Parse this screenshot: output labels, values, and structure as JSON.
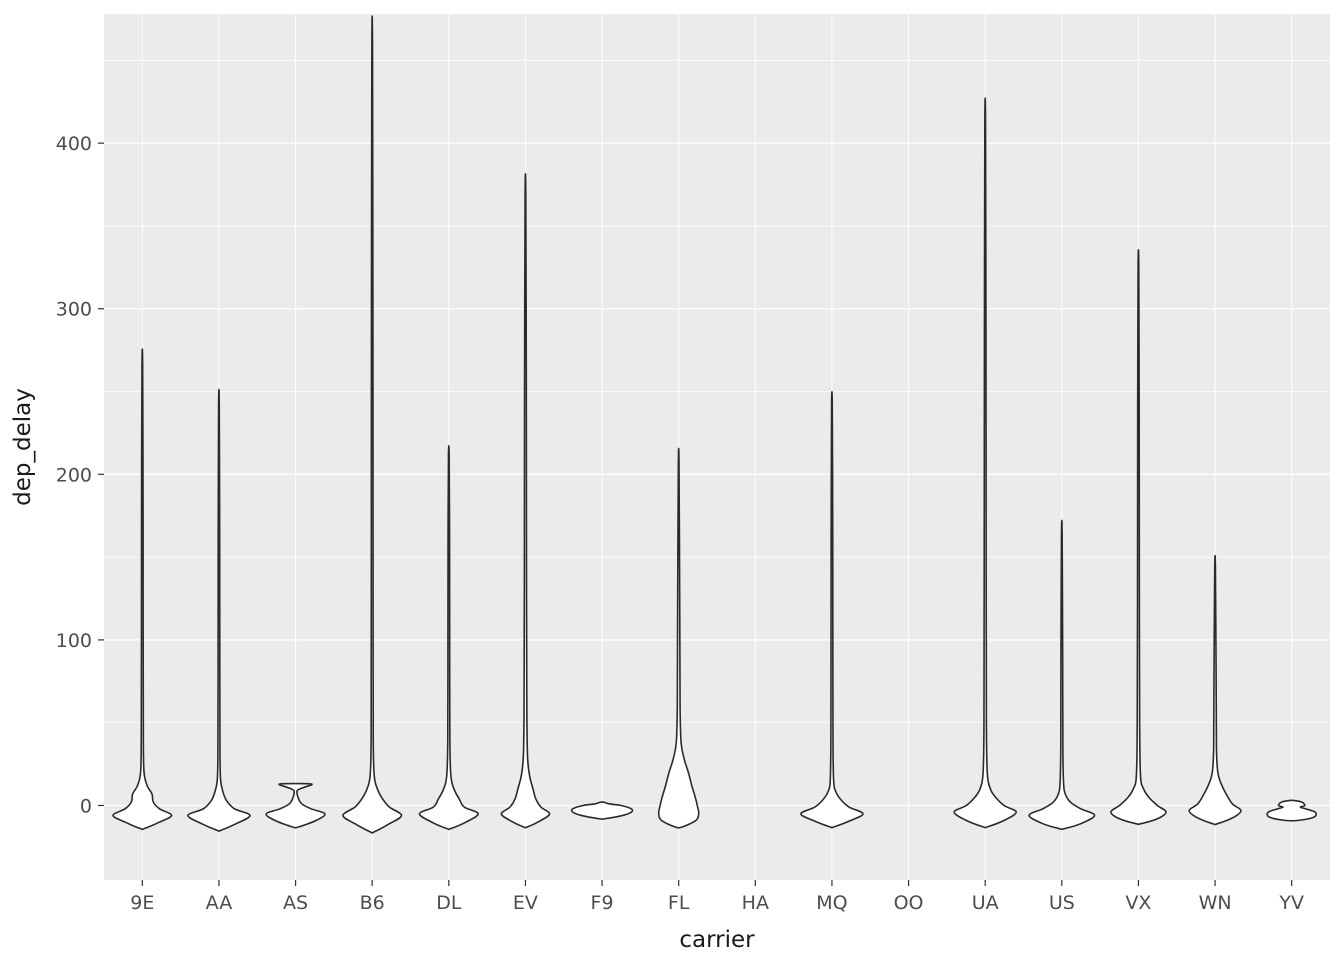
{
  "chart_data": {
    "type": "violin",
    "title": "",
    "xlabel": "carrier",
    "ylabel": "dep_delay",
    "categories": [
      "9E",
      "AA",
      "AS",
      "B6",
      "DL",
      "EV",
      "F9",
      "FL",
      "HA",
      "MQ",
      "OO",
      "UA",
      "US",
      "VX",
      "WN",
      "YV"
    ],
    "y_ticks": [
      0,
      100,
      200,
      300,
      400
    ],
    "y_minor_ticks": [
      50,
      150,
      250,
      350,
      450
    ],
    "ylim": [
      -45,
      478
    ],
    "legend": "none",
    "grid": "on",
    "panel_background": "#EBEBEB",
    "gridline_color": "#FFFFFF",
    "violin_fill": "#FFFFFF",
    "violin_stroke": "#2A2A2A",
    "tick_color": "#333333",
    "axis_text_color": "#4D4D4D",
    "series": [
      {
        "name": "9E",
        "min": -14,
        "max": 265,
        "profile": [
          [
            -14,
            0.05
          ],
          [
            -10,
            0.5
          ],
          [
            -6,
            0.85
          ],
          [
            -2,
            0.5
          ],
          [
            2,
            0.32
          ],
          [
            7,
            0.28
          ],
          [
            12,
            0.14
          ],
          [
            20,
            0.05
          ],
          [
            40,
            0.03
          ],
          [
            100,
            0.025
          ],
          [
            180,
            0.022
          ],
          [
            265,
            0.01
          ]
        ]
      },
      {
        "name": "AA",
        "min": -15,
        "max": 240,
        "profile": [
          [
            -15,
            0.05
          ],
          [
            -11,
            0.5
          ],
          [
            -6,
            0.9
          ],
          [
            -2,
            0.45
          ],
          [
            3,
            0.22
          ],
          [
            8,
            0.12
          ],
          [
            15,
            0.05
          ],
          [
            30,
            0.03
          ],
          [
            80,
            0.025
          ],
          [
            150,
            0.022
          ],
          [
            240,
            0.01
          ]
        ]
      },
      {
        "name": "AS",
        "min": -13,
        "max": 13,
        "profile": [
          [
            -13,
            0.08
          ],
          [
            -9,
            0.6
          ],
          [
            -5,
            0.85
          ],
          [
            -2,
            0.45
          ],
          [
            1,
            0.18
          ],
          [
            5,
            0.07
          ],
          [
            9,
            0.05
          ],
          [
            11,
            0.25
          ],
          [
            13,
            0.45
          ]
        ]
      },
      {
        "name": "B6",
        "min": -16,
        "max": 455,
        "profile": [
          [
            -16,
            0.05
          ],
          [
            -11,
            0.5
          ],
          [
            -6,
            0.85
          ],
          [
            -1,
            0.5
          ],
          [
            4,
            0.3
          ],
          [
            10,
            0.15
          ],
          [
            18,
            0.06
          ],
          [
            40,
            0.03
          ],
          [
            120,
            0.026
          ],
          [
            280,
            0.022
          ],
          [
            455,
            0.01
          ]
        ]
      },
      {
        "name": "DL",
        "min": -14,
        "max": 211,
        "profile": [
          [
            -14,
            0.05
          ],
          [
            -10,
            0.5
          ],
          [
            -5,
            0.85
          ],
          [
            -1,
            0.45
          ],
          [
            4,
            0.3
          ],
          [
            10,
            0.15
          ],
          [
            18,
            0.06
          ],
          [
            40,
            0.03
          ],
          [
            100,
            0.025
          ],
          [
            160,
            0.022
          ],
          [
            211,
            0.01
          ]
        ]
      },
      {
        "name": "EV",
        "min": -13,
        "max": 368,
        "profile": [
          [
            -13,
            0.05
          ],
          [
            -9,
            0.45
          ],
          [
            -5,
            0.7
          ],
          [
            -1,
            0.45
          ],
          [
            4,
            0.3
          ],
          [
            10,
            0.22
          ],
          [
            18,
            0.12
          ],
          [
            30,
            0.06
          ],
          [
            60,
            0.04
          ],
          [
            150,
            0.03
          ],
          [
            260,
            0.025
          ],
          [
            368,
            0.01
          ]
        ]
      },
      {
        "name": "F9",
        "min": -8,
        "max": 2,
        "profile": [
          [
            -8,
            0.08
          ],
          [
            -6,
            0.6
          ],
          [
            -4,
            0.85
          ],
          [
            -2,
            0.85
          ],
          [
            0,
            0.55
          ],
          [
            1,
            0.2
          ],
          [
            2,
            0.05
          ]
        ]
      },
      {
        "name": "FL",
        "min": -13,
        "max": 205,
        "profile": [
          [
            -13,
            0.1
          ],
          [
            -9,
            0.5
          ],
          [
            -5,
            0.58
          ],
          [
            -1,
            0.55
          ],
          [
            5,
            0.48
          ],
          [
            12,
            0.38
          ],
          [
            20,
            0.28
          ],
          [
            28,
            0.16
          ],
          [
            38,
            0.07
          ],
          [
            60,
            0.04
          ],
          [
            120,
            0.03
          ],
          [
            205,
            0.01
          ]
        ]
      },
      {
        "name": "HA",
        "min": null,
        "max": null,
        "profile": []
      },
      {
        "name": "MQ",
        "min": -13,
        "max": 241,
        "profile": [
          [
            -13,
            0.05
          ],
          [
            -9,
            0.55
          ],
          [
            -5,
            0.9
          ],
          [
            -1,
            0.5
          ],
          [
            3,
            0.28
          ],
          [
            8,
            0.12
          ],
          [
            15,
            0.05
          ],
          [
            40,
            0.03
          ],
          [
            100,
            0.026
          ],
          [
            170,
            0.022
          ],
          [
            241,
            0.01
          ]
        ]
      },
      {
        "name": "OO",
        "min": null,
        "max": null,
        "profile": []
      },
      {
        "name": "UA",
        "min": -13,
        "max": 412,
        "profile": [
          [
            -13,
            0.05
          ],
          [
            -9,
            0.55
          ],
          [
            -4,
            0.9
          ],
          [
            0,
            0.55
          ],
          [
            5,
            0.3
          ],
          [
            10,
            0.15
          ],
          [
            20,
            0.06
          ],
          [
            50,
            0.035
          ],
          [
            150,
            0.028
          ],
          [
            290,
            0.022
          ],
          [
            412,
            0.01
          ]
        ]
      },
      {
        "name": "US",
        "min": -14,
        "max": 163,
        "profile": [
          [
            -14,
            0.07
          ],
          [
            -11,
            0.55
          ],
          [
            -6,
            0.95
          ],
          [
            -2,
            0.55
          ],
          [
            2,
            0.25
          ],
          [
            7,
            0.1
          ],
          [
            14,
            0.05
          ],
          [
            35,
            0.03
          ],
          [
            90,
            0.025
          ],
          [
            163,
            0.01
          ]
        ]
      },
      {
        "name": "VX",
        "min": -11,
        "max": 325,
        "profile": [
          [
            -11,
            0.07
          ],
          [
            -8,
            0.55
          ],
          [
            -4,
            0.8
          ],
          [
            0,
            0.55
          ],
          [
            5,
            0.3
          ],
          [
            10,
            0.15
          ],
          [
            18,
            0.06
          ],
          [
            50,
            0.035
          ],
          [
            140,
            0.026
          ],
          [
            240,
            0.022
          ],
          [
            325,
            0.01
          ]
        ]
      },
      {
        "name": "WN",
        "min": -11,
        "max": 143,
        "profile": [
          [
            -11,
            0.07
          ],
          [
            -7,
            0.55
          ],
          [
            -3,
            0.75
          ],
          [
            1,
            0.5
          ],
          [
            7,
            0.32
          ],
          [
            13,
            0.18
          ],
          [
            20,
            0.08
          ],
          [
            35,
            0.04
          ],
          [
            80,
            0.03
          ],
          [
            143,
            0.01
          ]
        ]
      },
      {
        "name": "YV",
        "min": -9,
        "max": 3,
        "profile": [
          [
            -9,
            0.2
          ],
          [
            -7,
            0.65
          ],
          [
            -4,
            0.68
          ],
          [
            -2,
            0.4
          ],
          [
            -1,
            0.25
          ],
          [
            0,
            0.38
          ],
          [
            2,
            0.3
          ],
          [
            3,
            0.08
          ]
        ]
      }
    ]
  }
}
